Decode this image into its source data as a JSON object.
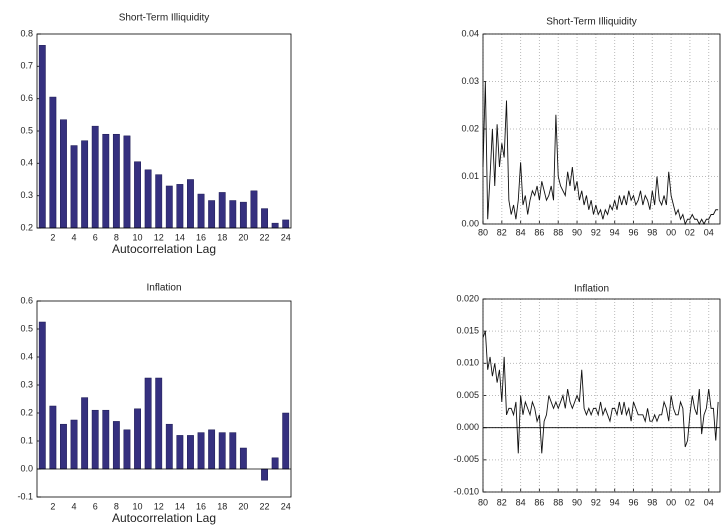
{
  "chart_data": [
    {
      "type": "bar",
      "title": "Short-Term Illiquidity",
      "xlabel": "Autocorrelation Lag",
      "categories": [
        null,
        2,
        null,
        4,
        null,
        6,
        null,
        8,
        null,
        10,
        null,
        12,
        null,
        14,
        null,
        16,
        null,
        18,
        null,
        20,
        null,
        22,
        null,
        24
      ],
      "values": [
        0.765,
        0.605,
        0.535,
        0.455,
        0.47,
        0.515,
        0.49,
        0.49,
        0.485,
        0.405,
        0.38,
        0.365,
        0.33,
        0.335,
        0.35,
        0.305,
        0.285,
        0.31,
        0.285,
        0.28,
        0.315,
        0.26,
        0.215,
        0.225
      ],
      "color": "#35307f",
      "ylim": [
        0.2,
        0.8
      ],
      "yticks": [
        0.2,
        0.3,
        0.4,
        0.5,
        0.6,
        0.7,
        0.8
      ]
    },
    {
      "type": "line",
      "title": "Short-Term Illiquidity",
      "color": "#111111",
      "grid": true,
      "x": [
        1980,
        1980.25,
        1980.5,
        1980.75,
        1981,
        1981.25,
        1981.5,
        1981.75,
        1982,
        1982.25,
        1982.5,
        1982.75,
        1983,
        1983.25,
        1983.5,
        1983.75,
        1984,
        1984.25,
        1984.5,
        1984.75,
        1985,
        1985.25,
        1985.5,
        1985.75,
        1986,
        1986.25,
        1986.5,
        1986.75,
        1987,
        1987.25,
        1987.5,
        1987.75,
        1988,
        1988.25,
        1988.5,
        1988.75,
        1989,
        1989.25,
        1989.5,
        1989.75,
        1990,
        1990.25,
        1990.5,
        1990.75,
        1991,
        1991.25,
        1991.5,
        1991.75,
        1992,
        1992.25,
        1992.5,
        1992.75,
        1993,
        1993.25,
        1993.5,
        1993.75,
        1994,
        1994.25,
        1994.5,
        1994.75,
        1995,
        1995.25,
        1995.5,
        1995.75,
        1996,
        1996.25,
        1996.5,
        1996.75,
        1997,
        1997.25,
        1997.5,
        1997.75,
        1998,
        1998.25,
        1998.5,
        1998.75,
        1999,
        1999.25,
        1999.5,
        1999.75,
        2000,
        2000.25,
        2000.5,
        2000.75,
        2001,
        2001.25,
        2001.5,
        2001.75,
        2002,
        2002.25,
        2002.5,
        2002.75,
        2003,
        2003.25,
        2003.5,
        2003.75,
        2004,
        2004.25,
        2004.5,
        2004.75,
        2005
      ],
      "values": [
        0.012,
        0.03,
        0.001,
        0.01,
        0.02,
        0.008,
        0.021,
        0.012,
        0.017,
        0.014,
        0.026,
        0.005,
        0.002,
        0.004,
        0.001,
        0.005,
        0.013,
        0.004,
        0.006,
        0.002,
        0.005,
        0.007,
        0.006,
        0.008,
        0.005,
        0.009,
        0.007,
        0.005,
        0.006,
        0.008,
        0.005,
        0.023,
        0.01,
        0.008,
        0.007,
        0.006,
        0.011,
        0.008,
        0.012,
        0.007,
        0.009,
        0.005,
        0.007,
        0.004,
        0.006,
        0.003,
        0.005,
        0.002,
        0.004,
        0.002,
        0.003,
        0.001,
        0.003,
        0.002,
        0.004,
        0.003,
        0.005,
        0.003,
        0.006,
        0.004,
        0.006,
        0.004,
        0.007,
        0.005,
        0.006,
        0.004,
        0.005,
        0.007,
        0.004,
        0.006,
        0.005,
        0.003,
        0.007,
        0.004,
        0.01,
        0.005,
        0.004,
        0.006,
        0.004,
        0.011,
        0.006,
        0.004,
        0.002,
        0.003,
        0.001,
        0.002,
        0.0,
        0.001,
        0.001,
        0.002,
        0.001,
        0.001,
        0.0,
        0.001,
        0.0,
        0.001,
        0.001,
        0.002,
        0.002,
        0.003,
        0.003
      ],
      "xlim": [
        1980,
        2005.2
      ],
      "xticks": [
        {
          "value": 1980,
          "label": "80"
        },
        {
          "value": 1982,
          "label": "82"
        },
        {
          "value": 1984,
          "label": "84"
        },
        {
          "value": 1986,
          "label": "86"
        },
        {
          "value": 1988,
          "label": "88"
        },
        {
          "value": 1990,
          "label": "90"
        },
        {
          "value": 1992,
          "label": "92"
        },
        {
          "value": 1994,
          "label": "94"
        },
        {
          "value": 1996,
          "label": "96"
        },
        {
          "value": 1998,
          "label": "98"
        },
        {
          "value": 2000,
          "label": "00"
        },
        {
          "value": 2002,
          "label": "02"
        },
        {
          "value": 2004,
          "label": "04"
        }
      ],
      "ylim": [
        0,
        0.04
      ],
      "yticks": [
        {
          "value": 0,
          "label": "0.00"
        },
        {
          "value": 0.01,
          "label": "0.01"
        },
        {
          "value": 0.02,
          "label": "0.02"
        },
        {
          "value": 0.03,
          "label": "0.03"
        },
        {
          "value": 0.04,
          "label": "0.04"
        }
      ]
    },
    {
      "type": "bar",
      "title": "Inflation",
      "xlabel": "Autocorrelation Lag",
      "categories": [
        null,
        2,
        null,
        4,
        null,
        6,
        null,
        8,
        null,
        10,
        null,
        12,
        null,
        14,
        null,
        16,
        null,
        18,
        null,
        20,
        null,
        22,
        null,
        24
      ],
      "values": [
        0.525,
        0.225,
        0.16,
        0.175,
        0.255,
        0.21,
        0.21,
        0.17,
        0.14,
        0.215,
        0.325,
        0.325,
        0.16,
        0.12,
        0.12,
        0.13,
        0.14,
        0.13,
        0.13,
        0.075,
        0.0,
        -0.04,
        0.04,
        0.2
      ],
      "color": "#35307f",
      "ylim": [
        -0.1,
        0.6
      ],
      "yticks": [
        -0.1,
        {
          "value": 0,
          "label": "0.0"
        },
        0.1,
        0.2,
        0.3,
        0.4,
        0.5,
        0.6
      ]
    },
    {
      "type": "line",
      "title": "Inflation",
      "color": "#111111",
      "grid": true,
      "x": [
        1980,
        1980.25,
        1980.5,
        1980.75,
        1981,
        1981.25,
        1981.5,
        1981.75,
        1982,
        1982.25,
        1982.5,
        1982.75,
        1983,
        1983.25,
        1983.5,
        1983.75,
        1984,
        1984.25,
        1984.5,
        1984.75,
        1985,
        1985.25,
        1985.5,
        1985.75,
        1986,
        1986.25,
        1986.5,
        1986.75,
        1987,
        1987.25,
        1987.5,
        1987.75,
        1988,
        1988.25,
        1988.5,
        1988.75,
        1989,
        1989.25,
        1989.5,
        1989.75,
        1990,
        1990.25,
        1990.5,
        1990.75,
        1991,
        1991.25,
        1991.5,
        1991.75,
        1992,
        1992.25,
        1992.5,
        1992.75,
        1993,
        1993.25,
        1993.5,
        1993.75,
        1994,
        1994.25,
        1994.5,
        1994.75,
        1995,
        1995.25,
        1995.5,
        1995.75,
        1996,
        1996.25,
        1996.5,
        1996.75,
        1997,
        1997.25,
        1997.5,
        1997.75,
        1998,
        1998.25,
        1998.5,
        1998.75,
        1999,
        1999.25,
        1999.5,
        1999.75,
        2000,
        2000.25,
        2000.5,
        2000.75,
        2001,
        2001.25,
        2001.5,
        2001.75,
        2002,
        2002.25,
        2002.5,
        2002.75,
        2003,
        2003.25,
        2003.5,
        2003.75,
        2004,
        2004.25,
        2004.5,
        2004.75,
        2005
      ],
      "values": [
        0.014,
        0.015,
        0.009,
        0.011,
        0.008,
        0.01,
        0.007,
        0.009,
        0.004,
        0.011,
        0.002,
        0.003,
        0.003,
        0.002,
        0.004,
        -0.004,
        0.005,
        0.002,
        0.004,
        0.003,
        0.002,
        0.004,
        0.003,
        0.001,
        0.002,
        -0.004,
        0.001,
        0.002,
        0.005,
        0.004,
        0.003,
        0.004,
        0.003,
        0.004,
        0.005,
        0.003,
        0.006,
        0.004,
        0.003,
        0.004,
        0.005,
        0.004,
        0.009,
        0.003,
        0.002,
        0.003,
        0.002,
        0.003,
        0.003,
        0.002,
        0.004,
        0.002,
        0.003,
        0.002,
        0.001,
        0.003,
        0.003,
        0.002,
        0.004,
        0.002,
        0.004,
        0.002,
        0.003,
        0.001,
        0.004,
        0.003,
        0.002,
        0.002,
        0.002,
        0.001,
        0.003,
        0.001,
        0.001,
        0.002,
        0.001,
        0.002,
        0.002,
        0.004,
        0.003,
        0.001,
        0.005,
        0.003,
        0.002,
        0.002,
        0.004,
        0.003,
        -0.003,
        -0.002,
        0.002,
        0.005,
        0.003,
        0.002,
        0.006,
        -0.001,
        0.002,
        0.003,
        0.006,
        0.003,
        0.003,
        -0.002,
        0.004
      ],
      "xlim": [
        1980,
        2005.2
      ],
      "xticks": [
        {
          "value": 1980,
          "label": "80"
        },
        {
          "value": 1982,
          "label": "82"
        },
        {
          "value": 1984,
          "label": "84"
        },
        {
          "value": 1986,
          "label": "86"
        },
        {
          "value": 1988,
          "label": "88"
        },
        {
          "value": 1990,
          "label": "90"
        },
        {
          "value": 1992,
          "label": "92"
        },
        {
          "value": 1994,
          "label": "94"
        },
        {
          "value": 1996,
          "label": "96"
        },
        {
          "value": 1998,
          "label": "98"
        },
        {
          "value": 2000,
          "label": "00"
        },
        {
          "value": 2002,
          "label": "02"
        },
        {
          "value": 2004,
          "label": "04"
        }
      ],
      "ylim": [
        -0.01,
        0.02
      ],
      "yticks": [
        {
          "value": -0.01,
          "label": "-0.010"
        },
        {
          "value": -0.005,
          "label": "-0.005"
        },
        {
          "value": 0,
          "label": "0.000"
        },
        {
          "value": 0.005,
          "label": "0.005"
        },
        {
          "value": 0.01,
          "label": "0.010"
        },
        {
          "value": 0.015,
          "label": "0.015"
        },
        {
          "value": 0.02,
          "label": "0.020"
        }
      ]
    }
  ]
}
